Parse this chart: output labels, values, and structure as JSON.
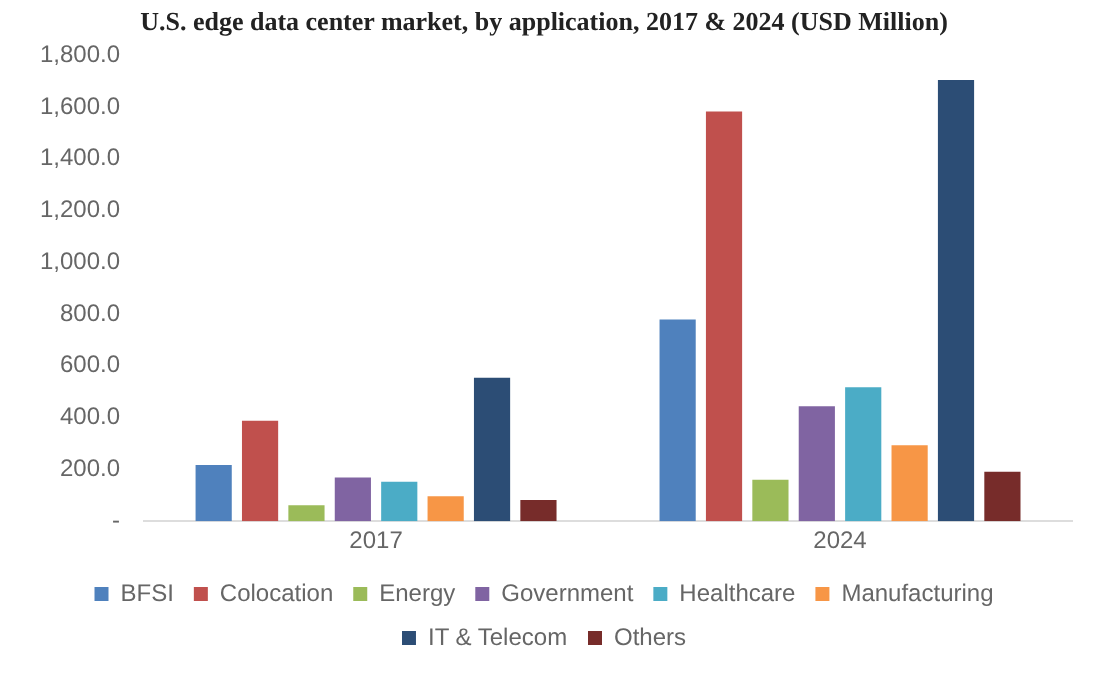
{
  "chart_data": {
    "type": "bar",
    "title": "U.S. edge data center market, by application, 2017 & 2024 (USD Million)",
    "categories": [
      "2017",
      "2024"
    ],
    "series": [
      {
        "name": "BFSI",
        "color": "#4f81bd",
        "values": [
          217,
          779
        ]
      },
      {
        "name": "Colocation",
        "color": "#c0504d",
        "values": [
          388,
          1583
        ]
      },
      {
        "name": "Energy",
        "color": "#9bbb59",
        "values": [
          62,
          160
        ]
      },
      {
        "name": "Government",
        "color": "#8064a2",
        "values": [
          169,
          444
        ]
      },
      {
        "name": "Healthcare",
        "color": "#4bacc6",
        "values": [
          152,
          517
        ]
      },
      {
        "name": "Manufacturing",
        "color": "#f79646",
        "values": [
          96,
          293
        ]
      },
      {
        "name": "IT & Telecom",
        "color": "#2c4d75",
        "values": [
          554,
          1704
        ]
      },
      {
        "name": "Others",
        "color": "#772c2a",
        "values": [
          82,
          191
        ]
      }
    ],
    "ylim": [
      0,
      1800
    ],
    "yticks": [
      {
        "value": 0,
        "label": "-"
      },
      {
        "value": 200,
        "label": "200.0"
      },
      {
        "value": 400,
        "label": "400.0"
      },
      {
        "value": 600,
        "label": "600.0"
      },
      {
        "value": 800,
        "label": "800.0"
      },
      {
        "value": 1000,
        "label": "1,000.0"
      },
      {
        "value": 1200,
        "label": "1,200.0"
      },
      {
        "value": 1400,
        "label": "1,400.0"
      },
      {
        "value": 1600,
        "label": "1,600.0"
      },
      {
        "value": 1800,
        "label": "1,800.0"
      }
    ],
    "grid": false,
    "legend": "bottom"
  }
}
